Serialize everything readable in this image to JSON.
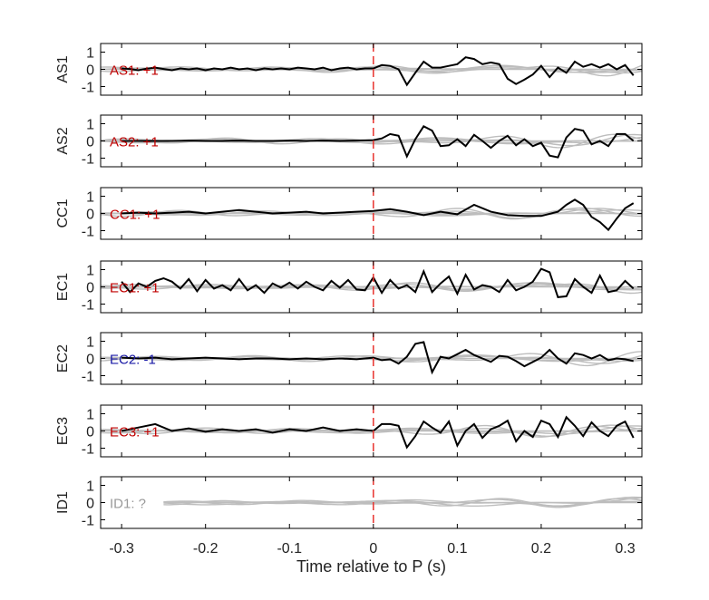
{
  "chart_data": {
    "type": "line",
    "xlabel": "Time relative to P (s)",
    "xlim": [
      -0.325,
      0.32
    ],
    "ylim": [
      -1.5,
      1.5
    ],
    "xticks": [
      -0.3,
      -0.2,
      -0.1,
      0,
      0.1,
      0.2,
      0.3
    ],
    "xtick_labels": [
      "-0.3",
      "-0.2",
      "-0.1",
      "0",
      "0.1",
      "0.2",
      "0.3"
    ],
    "yticks": [
      1,
      0,
      -1
    ],
    "ytick_labels": [
      "1",
      "0",
      "-1"
    ],
    "marker_x": 0,
    "colors": {
      "trace": "#000000",
      "gray_traces": "#bdbdbd",
      "marker": "#e8322e",
      "positive_label": "#c00000",
      "negative_label": "#1a1aa6",
      "unknown_label": "#9a9a9a",
      "axis": "#000000"
    },
    "panels": [
      {
        "station": "AS1",
        "annotation": "AS1: +1",
        "polarity": "positive",
        "x": [
          -0.3,
          -0.29,
          -0.28,
          -0.27,
          -0.26,
          -0.25,
          -0.24,
          -0.23,
          -0.22,
          -0.21,
          -0.2,
          -0.19,
          -0.18,
          -0.17,
          -0.16,
          -0.15,
          -0.14,
          -0.13,
          -0.12,
          -0.11,
          -0.1,
          -0.09,
          -0.08,
          -0.07,
          -0.06,
          -0.05,
          -0.04,
          -0.03,
          -0.02,
          -0.01,
          0,
          0.01,
          0.02,
          0.03,
          0.04,
          0.05,
          0.06,
          0.07,
          0.08,
          0.09,
          0.1,
          0.11,
          0.12,
          0.13,
          0.14,
          0.15,
          0.16,
          0.17,
          0.18,
          0.19,
          0.2,
          0.21,
          0.22,
          0.23,
          0.24,
          0.25,
          0.26,
          0.27,
          0.28,
          0.29,
          0.3,
          0.31
        ],
        "y": [
          0.05,
          0.02,
          -0.05,
          0.04,
          0.1,
          0.02,
          -0.05,
          0.05,
          0.0,
          0.05,
          -0.05,
          0.05,
          0.0,
          0.1,
          0.0,
          0.05,
          -0.05,
          0.05,
          0.0,
          0.05,
          0.0,
          0.1,
          0.05,
          0.0,
          0.1,
          -0.05,
          0.05,
          0.1,
          0.0,
          0.05,
          0.05,
          0.25,
          0.2,
          0.0,
          -0.9,
          -0.2,
          0.45,
          0.1,
          0.1,
          0.2,
          0.3,
          0.7,
          0.6,
          0.3,
          0.4,
          0.3,
          -0.55,
          -0.85,
          -0.6,
          -0.3,
          0.2,
          -0.45,
          0.1,
          -0.2,
          0.45,
          0.15,
          0.3,
          0.1,
          0.3,
          0.0,
          0.25,
          -0.35
        ]
      },
      {
        "station": "AS2",
        "annotation": "AS2: +1",
        "polarity": "positive",
        "x": [
          -0.3,
          -0.28,
          -0.26,
          -0.24,
          -0.22,
          -0.2,
          -0.18,
          -0.16,
          -0.14,
          -0.12,
          -0.1,
          -0.08,
          -0.06,
          -0.04,
          -0.02,
          0,
          0.01,
          0.02,
          0.03,
          0.04,
          0.05,
          0.06,
          0.07,
          0.08,
          0.09,
          0.1,
          0.11,
          0.12,
          0.13,
          0.14,
          0.15,
          0.16,
          0.17,
          0.18,
          0.19,
          0.2,
          0.21,
          0.22,
          0.23,
          0.24,
          0.25,
          0.26,
          0.27,
          0.28,
          0.29,
          0.3,
          0.31
        ],
        "y": [
          0.0,
          0.0,
          0.0,
          0.0,
          0.02,
          0.0,
          0.0,
          0.02,
          0.0,
          0.0,
          0.02,
          0.0,
          0.02,
          0.0,
          0.02,
          0.05,
          0.15,
          0.4,
          0.3,
          -0.9,
          0.1,
          0.85,
          0.6,
          -0.3,
          -0.25,
          0.1,
          -0.3,
          0.35,
          0.0,
          -0.4,
          0.0,
          0.3,
          -0.25,
          0.1,
          -0.3,
          -0.1,
          -0.85,
          -0.95,
          0.2,
          0.7,
          0.6,
          -0.2,
          0.0,
          -0.3,
          0.4,
          0.4,
          0.0
        ]
      },
      {
        "station": "CC1",
        "annotation": "CC1: +1",
        "polarity": "positive",
        "x": [
          -0.3,
          -0.28,
          -0.26,
          -0.24,
          -0.22,
          -0.2,
          -0.18,
          -0.16,
          -0.14,
          -0.12,
          -0.1,
          -0.08,
          -0.06,
          -0.04,
          -0.02,
          0,
          0.02,
          0.04,
          0.06,
          0.08,
          0.1,
          0.12,
          0.14,
          0.16,
          0.18,
          0.2,
          0.22,
          0.23,
          0.24,
          0.25,
          0.26,
          0.27,
          0.28,
          0.29,
          0.3,
          0.31
        ],
        "y": [
          0.0,
          0.05,
          0.0,
          0.05,
          0.1,
          0.0,
          0.1,
          0.2,
          0.1,
          0.0,
          0.05,
          0.1,
          0.0,
          0.05,
          0.1,
          0.15,
          0.25,
          0.1,
          -0.1,
          0.1,
          -0.05,
          0.5,
          0.1,
          -0.1,
          -0.15,
          -0.15,
          0.1,
          0.5,
          0.8,
          0.5,
          -0.2,
          -0.5,
          -0.95,
          -0.3,
          0.3,
          0.6
        ]
      },
      {
        "station": "EC1",
        "annotation": "EC1: +1",
        "polarity": "positive",
        "x": [
          -0.3,
          -0.29,
          -0.28,
          -0.27,
          -0.26,
          -0.25,
          -0.24,
          -0.23,
          -0.22,
          -0.21,
          -0.2,
          -0.19,
          -0.18,
          -0.17,
          -0.16,
          -0.15,
          -0.14,
          -0.13,
          -0.12,
          -0.11,
          -0.1,
          -0.09,
          -0.08,
          -0.07,
          -0.06,
          -0.05,
          -0.04,
          -0.03,
          -0.02,
          -0.01,
          0,
          0.01,
          0.02,
          0.03,
          0.04,
          0.05,
          0.06,
          0.07,
          0.08,
          0.09,
          0.1,
          0.11,
          0.12,
          0.13,
          0.14,
          0.15,
          0.16,
          0.17,
          0.18,
          0.19,
          0.2,
          0.21,
          0.22,
          0.23,
          0.24,
          0.25,
          0.26,
          0.27,
          0.28,
          0.29,
          0.3,
          0.31
        ],
        "y": [
          0.3,
          -0.3,
          0.2,
          0.0,
          0.35,
          0.5,
          0.3,
          -0.1,
          0.45,
          -0.25,
          0.4,
          -0.1,
          0.1,
          -0.2,
          0.45,
          -0.2,
          0.1,
          -0.35,
          0.2,
          -0.05,
          0.25,
          -0.1,
          0.3,
          0.0,
          -0.2,
          0.35,
          -0.05,
          0.4,
          -0.15,
          -0.2,
          0.55,
          -0.35,
          0.4,
          -0.1,
          0.1,
          -0.3,
          0.9,
          -0.3,
          0.2,
          0.6,
          -0.4,
          0.7,
          -0.15,
          0.1,
          0.0,
          -0.3,
          0.4,
          -0.2,
          0.0,
          0.3,
          1.05,
          0.85,
          -0.6,
          -0.55,
          0.45,
          0.0,
          -0.35,
          0.65,
          -0.3,
          -0.2,
          0.35,
          -0.1
        ]
      },
      {
        "station": "EC2",
        "annotation": "EC2: -1",
        "polarity": "negative",
        "x": [
          -0.3,
          -0.28,
          -0.26,
          -0.24,
          -0.22,
          -0.2,
          -0.18,
          -0.16,
          -0.14,
          -0.12,
          -0.1,
          -0.08,
          -0.06,
          -0.04,
          -0.02,
          0,
          0.01,
          0.02,
          0.03,
          0.04,
          0.05,
          0.06,
          0.07,
          0.08,
          0.09,
          0.1,
          0.11,
          0.12,
          0.13,
          0.14,
          0.15,
          0.16,
          0.17,
          0.18,
          0.19,
          0.2,
          0.21,
          0.22,
          0.23,
          0.24,
          0.25,
          0.26,
          0.27,
          0.28,
          0.29,
          0.3,
          0.31
        ],
        "y": [
          0.05,
          0.0,
          0.05,
          -0.05,
          0.0,
          0.05,
          0.0,
          -0.05,
          0.0,
          0.0,
          -0.05,
          0.0,
          -0.05,
          0.0,
          -0.05,
          0.05,
          -0.1,
          -0.05,
          -0.3,
          0.1,
          0.85,
          0.95,
          -0.8,
          0.1,
          0.0,
          0.25,
          0.5,
          0.2,
          0.0,
          -0.2,
          0.15,
          0.1,
          -0.15,
          -0.45,
          -0.2,
          0.05,
          0.5,
          0.0,
          -0.3,
          0.3,
          0.2,
          0.0,
          0.2,
          -0.1,
          0.0,
          -0.05,
          -0.15
        ]
      },
      {
        "station": "EC3",
        "annotation": "EC3: +1",
        "polarity": "positive",
        "x": [
          -0.3,
          -0.28,
          -0.26,
          -0.24,
          -0.22,
          -0.2,
          -0.18,
          -0.16,
          -0.14,
          -0.12,
          -0.1,
          -0.08,
          -0.06,
          -0.04,
          -0.02,
          0,
          0.01,
          0.02,
          0.03,
          0.04,
          0.05,
          0.06,
          0.07,
          0.08,
          0.09,
          0.1,
          0.11,
          0.12,
          0.13,
          0.14,
          0.15,
          0.16,
          0.17,
          0.18,
          0.19,
          0.2,
          0.21,
          0.22,
          0.23,
          0.24,
          0.25,
          0.26,
          0.27,
          0.28,
          0.29,
          0.3,
          0.31
        ],
        "y": [
          0.0,
          0.2,
          0.4,
          0.0,
          0.15,
          -0.05,
          0.1,
          0.0,
          0.1,
          -0.1,
          0.1,
          0.0,
          0.2,
          0.0,
          0.1,
          0.0,
          0.4,
          0.4,
          0.3,
          -0.95,
          -0.3,
          0.55,
          0.2,
          -0.1,
          0.55,
          -0.85,
          0.0,
          0.4,
          -0.4,
          0.1,
          0.3,
          0.6,
          -0.6,
          0.0,
          -0.35,
          0.6,
          0.4,
          -0.35,
          0.8,
          0.3,
          -0.3,
          0.5,
          0.0,
          -0.3,
          0.3,
          0.55,
          -0.4
        ]
      },
      {
        "station": "ID1",
        "annotation": "ID1: ?",
        "polarity": "unknown",
        "x": [],
        "y": []
      }
    ]
  }
}
